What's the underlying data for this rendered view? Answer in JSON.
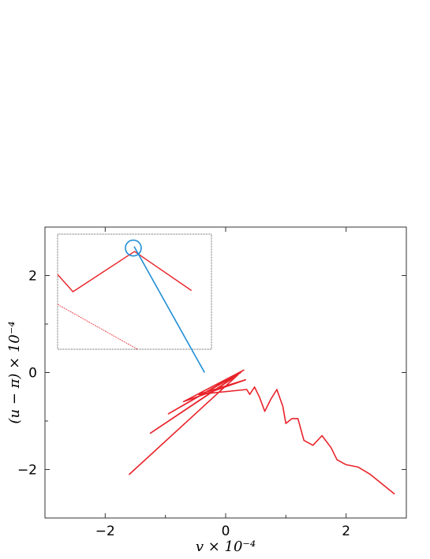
{
  "chart_data": {
    "type": "line",
    "xlabel": "v × 10⁻⁴",
    "ylabel": "(u − π) × 10⁻⁴",
    "xlim": [
      -3,
      3
    ],
    "ylim": [
      -3,
      3
    ],
    "x_ticks": [
      {
        "value": -2,
        "label": "−2"
      },
      {
        "value": 0,
        "label": "0"
      },
      {
        "value": 2,
        "label": "2"
      }
    ],
    "y_ticks": [
      {
        "value": 2,
        "label": "2"
      },
      {
        "value": 0,
        "label": "0"
      },
      {
        "value": -2,
        "label": "−2"
      }
    ],
    "grid": false,
    "colors": {
      "main": "#e8232a",
      "zoom": "#1f8ed6",
      "axes": "#333333",
      "inset_border": "#555555"
    },
    "series": [
      {
        "color": "#e8232a",
        "polylines": [
          [
            [
              -1.6,
              -2.1
            ],
            [
              0.2,
              -0.05
            ],
            [
              -1.25,
              -1.25
            ],
            [
              0.25,
              0.0
            ],
            [
              -0.95,
              -0.85
            ],
            [
              0.3,
              0.05
            ],
            [
              -0.7,
              -0.6
            ],
            [
              0.33,
              -0.15
            ],
            [
              -0.45,
              -0.45
            ],
            [
              0.35,
              -0.35
            ],
            [
              0.4,
              -0.45
            ],
            [
              0.48,
              -0.3
            ],
            [
              0.56,
              -0.5
            ],
            [
              0.65,
              -0.8
            ],
            [
              0.75,
              -0.55
            ],
            [
              0.85,
              -0.35
            ],
            [
              0.95,
              -0.7
            ],
            [
              1.0,
              -1.05
            ],
            [
              1.1,
              -0.95
            ],
            [
              1.2,
              -0.95
            ],
            [
              1.3,
              -1.4
            ],
            [
              1.45,
              -1.5
            ],
            [
              1.6,
              -1.3
            ],
            [
              1.75,
              -1.55
            ],
            [
              1.85,
              -1.8
            ],
            [
              2.0,
              -1.9
            ],
            [
              2.2,
              -1.95
            ],
            [
              2.4,
              -2.1
            ],
            [
              2.6,
              -2.3
            ],
            [
              2.8,
              -2.5
            ]
          ]
        ]
      }
    ],
    "zoom_marker": {
      "color": "#1f8ed6",
      "from": [
        -1.52,
        2.6
      ],
      "to": [
        -0.35,
        0.0
      ],
      "inset": {
        "xlim": [
          0,
          1
        ],
        "ylim": [
          0,
          1
        ],
        "polylines": [
          [
            [
              0.0,
              0.65
            ],
            [
              0.1,
              0.5
            ],
            [
              0.5,
              0.85
            ],
            [
              0.87,
              0.51
            ]
          ],
          [
            [
              0.0,
              0.39
            ],
            [
              0.52,
              0.0
            ]
          ]
        ]
      }
    }
  }
}
